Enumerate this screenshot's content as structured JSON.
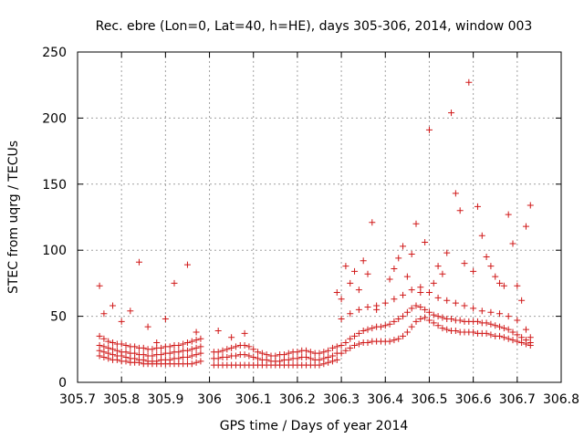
{
  "chart_data": {
    "type": "scatter",
    "title": "Rec. ebre (Lon=0, Lat=40, h=HE), days 305-306, 2014, window 003",
    "xlabel": "GPS time / Days of year 2014",
    "ylabel": "STEC from uqrg / TECUs",
    "xlim": [
      305.7,
      306.8
    ],
    "ylim": [
      0,
      250
    ],
    "xticks": [
      305.7,
      305.8,
      305.9,
      306,
      306.1,
      306.2,
      306.3,
      306.4,
      306.5,
      306.6,
      306.7,
      306.8
    ],
    "xtick_labels": [
      "305.7",
      "305.8",
      "305.9",
      "306",
      "306.1",
      "306.2",
      "306.3",
      "306.4",
      "306.5",
      "306.6",
      "306.7",
      "306.8"
    ],
    "yticks": [
      0,
      50,
      100,
      150,
      200,
      250
    ],
    "ytick_labels": [
      "0",
      "50",
      "100",
      "150",
      "200",
      "250"
    ],
    "grid": true,
    "marker": "plus",
    "color": "#d01818",
    "series": [
      {
        "x": [
          305.75,
          305.76,
          305.77,
          305.78,
          305.79,
          305.8,
          305.81,
          305.82,
          305.83,
          305.84,
          305.85,
          305.86,
          305.87,
          305.88,
          305.89,
          305.9,
          305.91,
          305.92,
          305.93,
          305.94,
          305.95,
          305.96,
          305.97,
          305.98
        ],
        "y": [
          20,
          19,
          18,
          17,
          17,
          16,
          16,
          15,
          15,
          15,
          14,
          14,
          14,
          14,
          14,
          14,
          14,
          14,
          14,
          14,
          14,
          14,
          15,
          16
        ]
      },
      {
        "x": [
          305.75,
          305.76,
          305.77,
          305.78,
          305.79,
          305.8,
          305.81,
          305.82,
          305.83,
          305.84,
          305.85,
          305.86,
          305.87,
          305.88,
          305.89,
          305.9,
          305.91,
          305.92,
          305.93,
          305.94,
          305.95,
          305.96,
          305.97,
          305.98
        ],
        "y": [
          24,
          23,
          22,
          21,
          20,
          20,
          19,
          18,
          18,
          17,
          17,
          16,
          16,
          16,
          17,
          17,
          17,
          18,
          18,
          19,
          19,
          20,
          21,
          22
        ]
      },
      {
        "x": [
          305.75,
          305.76,
          305.77,
          305.78,
          305.79,
          305.8,
          305.81,
          305.82,
          305.83,
          305.84,
          305.85,
          305.86,
          305.87,
          305.88,
          305.89,
          305.9,
          305.91,
          305.92,
          305.93,
          305.94,
          305.95,
          305.96,
          305.97,
          305.98
        ],
        "y": [
          28,
          27,
          26,
          25,
          24,
          23,
          23,
          22,
          22,
          21,
          21,
          20,
          20,
          21,
          21,
          22,
          22,
          23,
          23,
          24,
          24,
          25,
          26,
          27
        ]
      },
      {
        "x": [
          305.75,
          305.76,
          305.77,
          305.78,
          305.79,
          305.8,
          305.81,
          305.82,
          305.83,
          305.84,
          305.85,
          305.86,
          305.87,
          305.88,
          305.89,
          305.9,
          305.91,
          305.92,
          305.93,
          305.94,
          305.95,
          305.96,
          305.97,
          305.98
        ],
        "y": [
          35,
          33,
          31,
          30,
          29,
          29,
          28,
          27,
          27,
          26,
          26,
          25,
          25,
          26,
          26,
          27,
          27,
          28,
          28,
          29,
          30,
          31,
          32,
          33
        ]
      },
      {
        "x": [
          306.01,
          306.02,
          306.03,
          306.04,
          306.05,
          306.06,
          306.07,
          306.08,
          306.09,
          306.1,
          306.11,
          306.12,
          306.13,
          306.14,
          306.15,
          306.16,
          306.17,
          306.18,
          306.19,
          306.2,
          306.21,
          306.22,
          306.23,
          306.24,
          306.25,
          306.26,
          306.27,
          306.28,
          306.29
        ],
        "y": [
          13,
          13,
          13,
          13,
          13,
          13,
          13,
          13,
          13,
          13,
          13,
          13,
          13,
          13,
          13,
          13,
          13,
          13,
          13,
          13,
          13,
          13,
          13,
          13,
          13,
          14,
          15,
          16,
          17
        ]
      },
      {
        "x": [
          306.01,
          306.02,
          306.03,
          306.04,
          306.05,
          306.06,
          306.07,
          306.08,
          306.09,
          306.1,
          306.11,
          306.12,
          306.13,
          306.14,
          306.15,
          306.16,
          306.17,
          306.18,
          306.19,
          306.2,
          306.21,
          306.22,
          306.23,
          306.24,
          306.25,
          306.26,
          306.27,
          306.28,
          306.29
        ],
        "y": [
          18,
          18,
          19,
          19,
          20,
          20,
          21,
          21,
          20,
          19,
          18,
          17,
          17,
          16,
          16,
          16,
          17,
          17,
          18,
          18,
          19,
          19,
          18,
          17,
          17,
          18,
          19,
          20,
          22
        ]
      },
      {
        "x": [
          306.01,
          306.02,
          306.03,
          306.04,
          306.05,
          306.06,
          306.07,
          306.08,
          306.09,
          306.1,
          306.11,
          306.12,
          306.13,
          306.14,
          306.15,
          306.16,
          306.17,
          306.18,
          306.19,
          306.2,
          306.21,
          306.22,
          306.23,
          306.24,
          306.25,
          306.26,
          306.27,
          306.28,
          306.29
        ],
        "y": [
          23,
          23,
          24,
          25,
          26,
          27,
          28,
          28,
          27,
          25,
          23,
          22,
          21,
          20,
          20,
          21,
          21,
          22,
          23,
          23,
          24,
          24,
          23,
          22,
          22,
          23,
          24,
          26,
          27
        ]
      },
      {
        "x": [
          306.3,
          306.31,
          306.32,
          306.33,
          306.34,
          306.35,
          306.36,
          306.37,
          306.38,
          306.39,
          306.4,
          306.41,
          306.42,
          306.43,
          306.44,
          306.45,
          306.46,
          306.47,
          306.48,
          306.49,
          306.5,
          306.51,
          306.52,
          306.53,
          306.54,
          306.55,
          306.56,
          306.57,
          306.58,
          306.59,
          306.6,
          306.61,
          306.62,
          306.63,
          306.64,
          306.65,
          306.66,
          306.67,
          306.68,
          306.69,
          306.7,
          306.71,
          306.72,
          306.73
        ],
        "y": [
          22,
          24,
          26,
          28,
          29,
          30,
          30,
          31,
          31,
          31,
          31,
          31,
          32,
          33,
          35,
          38,
          42,
          46,
          48,
          49,
          47,
          45,
          43,
          41,
          40,
          39,
          39,
          38,
          38,
          38,
          38,
          37,
          37,
          37,
          36,
          35,
          35,
          34,
          33,
          32,
          31,
          30,
          29,
          28
        ]
      },
      {
        "x": [
          306.3,
          306.31,
          306.32,
          306.33,
          306.34,
          306.35,
          306.36,
          306.37,
          306.38,
          306.39,
          306.4,
          306.41,
          306.42,
          306.43,
          306.44,
          306.45,
          306.46,
          306.47,
          306.48,
          306.49,
          306.5,
          306.51,
          306.52,
          306.53,
          306.54,
          306.55,
          306.56,
          306.57,
          306.58,
          306.59,
          306.6,
          306.61,
          306.62,
          306.63,
          306.64,
          306.65,
          306.66,
          306.67,
          306.68,
          306.69,
          306.7,
          306.71,
          306.72,
          306.73
        ],
        "y": [
          28,
          30,
          33,
          35,
          37,
          39,
          40,
          41,
          42,
          42,
          43,
          44,
          46,
          48,
          50,
          53,
          56,
          58,
          57,
          55,
          53,
          51,
          50,
          49,
          48,
          48,
          47,
          47,
          46,
          46,
          46,
          46,
          45,
          45,
          44,
          43,
          42,
          41,
          40,
          38,
          36,
          34,
          32,
          30
        ]
      },
      {
        "x": [
          306.3,
          306.32,
          306.34,
          306.36,
          306.38,
          306.4,
          306.42,
          306.44,
          306.46,
          306.48,
          306.5,
          306.52,
          306.54,
          306.56,
          306.58,
          306.6,
          306.62,
          306.64,
          306.66,
          306.68,
          306.7,
          306.72,
          306.73
        ],
        "y": [
          48,
          52,
          55,
          57,
          58,
          60,
          63,
          66,
          70,
          72,
          68,
          64,
          62,
          60,
          58,
          56,
          54,
          53,
          52,
          50,
          47,
          40,
          34
        ]
      },
      {
        "x": [
          305.75,
          305.76,
          305.78,
          305.8,
          305.82,
          305.84,
          305.86,
          305.88,
          305.9,
          305.92,
          305.95,
          305.97,
          306.02,
          306.05,
          306.08,
          306.29,
          306.3,
          306.31,
          306.32,
          306.33,
          306.34,
          306.35,
          306.36,
          306.37,
          306.38,
          306.41,
          306.42,
          306.43,
          306.44,
          306.45,
          306.46,
          306.47,
          306.48,
          306.49,
          306.5,
          306.51,
          306.52,
          306.53,
          306.54,
          306.55,
          306.56,
          306.57,
          306.58,
          306.59,
          306.6,
          306.61,
          306.62,
          306.63,
          306.64,
          306.65,
          306.66,
          306.67,
          306.68,
          306.69,
          306.7,
          306.71,
          306.72,
          306.73
        ],
        "y": [
          73,
          52,
          58,
          46,
          54,
          91,
          42,
          30,
          48,
          75,
          89,
          38,
          39,
          34,
          37,
          68,
          63,
          88,
          75,
          84,
          70,
          92,
          82,
          121,
          55,
          78,
          86,
          94,
          103,
          80,
          97,
          120,
          68,
          106,
          191,
          75,
          88,
          82,
          98,
          204,
          143,
          130,
          90,
          227,
          84,
          133,
          111,
          95,
          88,
          80,
          75,
          73,
          127,
          105,
          73,
          62,
          118,
          134
        ]
      }
    ]
  }
}
